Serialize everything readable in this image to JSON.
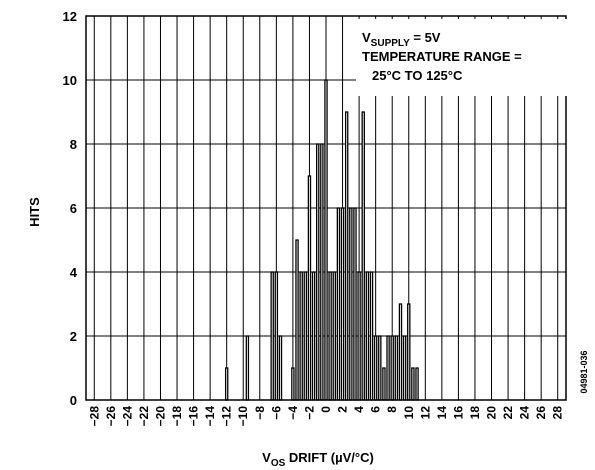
{
  "chart_data": {
    "type": "bar",
    "xlabel_main": "V",
    "xlabel_sub": "OS",
    "xlabel_rest": " DRIFT (µV/°C)",
    "ylabel": "HITS",
    "xlim": [
      -29,
      29
    ],
    "ylim": [
      0,
      12
    ],
    "x_ticks": [
      -28,
      -26,
      -24,
      -22,
      -20,
      -18,
      -16,
      -14,
      -12,
      -10,
      -8,
      -6,
      -4,
      -2,
      0,
      2,
      4,
      6,
      8,
      10,
      12,
      14,
      16,
      18,
      20,
      22,
      24,
      26,
      28
    ],
    "x_tick_labels": [
      "−28",
      "−26",
      "−24",
      "−22",
      "−20",
      "−18",
      "−16",
      "−14",
      "−12",
      "−10",
      "−8",
      "−6",
      "−4",
      "−2",
      "0",
      "2",
      "4",
      "6",
      "8",
      "10",
      "12",
      "14",
      "16",
      "18",
      "20",
      "22",
      "24",
      "26",
      "28"
    ],
    "y_ticks": [
      0,
      2,
      4,
      6,
      8,
      10,
      12
    ],
    "y_tick_labels": [
      "0",
      "2",
      "4",
      "6",
      "8",
      "10",
      "12"
    ],
    "grid": true,
    "bin_width": 0.5,
    "x": [
      -12,
      -9.5,
      -6.5,
      -6,
      -5.5,
      -4,
      -3.5,
      -3,
      -2.5,
      -2,
      -1.5,
      -1,
      -0.5,
      0,
      0.5,
      1,
      1.5,
      2,
      2.5,
      3,
      3.5,
      4,
      4.5,
      5,
      5.5,
      6,
      6.5,
      7,
      7.5,
      8,
      8.5,
      9,
      9.5,
      10,
      10.5,
      11,
      11.5,
      12,
      12.5,
      13
    ],
    "values": [
      1,
      2,
      4,
      4,
      2,
      1,
      5,
      4,
      4,
      7,
      4,
      8,
      8,
      10,
      4,
      4,
      6,
      6,
      9,
      6,
      6,
      4,
      9,
      4,
      4,
      2,
      2,
      1,
      2,
      2,
      2,
      3,
      2,
      3,
      1,
      1,
      0,
      0,
      0,
      0
    ],
    "legend": {
      "line1_main": "V",
      "line1_sub": "SUPPLY",
      "line1_rest": " = 5V",
      "line2": "TEMPERATURE RANGE =",
      "line3": "25°C TO 125°C"
    },
    "legend_position": "top-right",
    "figure_id": "04981-036"
  }
}
